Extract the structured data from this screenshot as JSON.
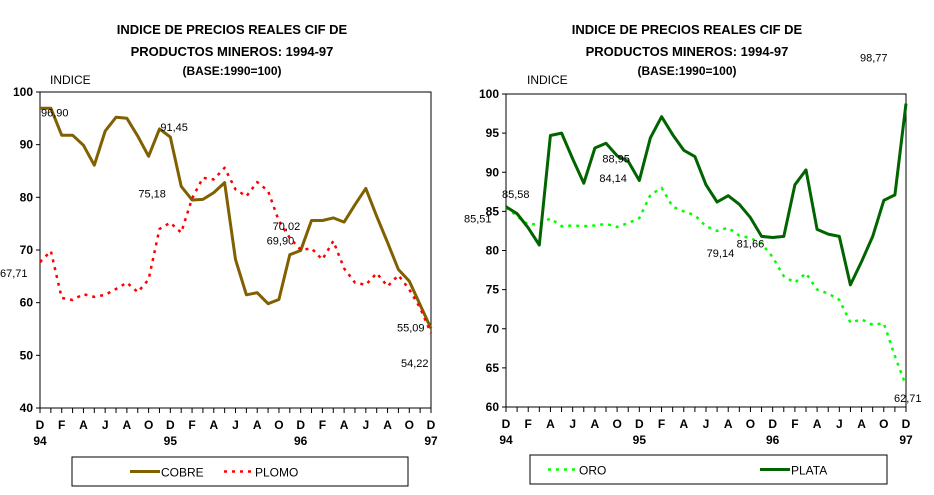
{
  "chart_data": [
    {
      "type": "line",
      "title": [
        "INDICE DE PRECIOS REALES CIF DE",
        "PRODUCTOS MINEROS: 1994-97"
      ],
      "subtitle": "(BASE:1990=100)",
      "ylabel": "INDICE",
      "ylim": [
        40,
        100
      ],
      "yticks": [
        40,
        50,
        60,
        70,
        80,
        90,
        100
      ],
      "x_month_labels": [
        "D",
        "F",
        "A",
        "J",
        "A",
        "O",
        "D",
        "F",
        "A",
        "J",
        "A",
        "O",
        "D",
        "F",
        "A",
        "J",
        "A",
        "O",
        "D"
      ],
      "x_year_labels": [
        "94",
        "95",
        "96",
        "97"
      ],
      "x_start": "1994-12",
      "x_end": "1997-12",
      "grid": false,
      "legend_position": "bottom",
      "series": [
        {
          "name": "COBRE",
          "color": "#806000",
          "style": "solid",
          "values": [
            96.9,
            96.9,
            91.8,
            91.8,
            89.9,
            86.1,
            92.6,
            95.2,
            95.0,
            91.6,
            87.8,
            93.0,
            91.45,
            82.1,
            79.5,
            79.6,
            80.9,
            82.8,
            68.2,
            61.5,
            61.9,
            59.8,
            60.6,
            69.1,
            69.9,
            75.6,
            75.6,
            76.1,
            75.3,
            78.6,
            81.7,
            76.4,
            71.4,
            66.3,
            64.1,
            59.6,
            55.09
          ],
          "annotations": [
            {
              "index": 0,
              "text": "96,90"
            },
            {
              "index": 12,
              "text": "91,45"
            },
            {
              "index": 24,
              "text": "69,90"
            },
            {
              "index": 36,
              "text": "55,09"
            }
          ]
        },
        {
          "name": "PLOMO",
          "color": "#ff0000",
          "style": "dotted",
          "values": [
            67.71,
            69.8,
            60.9,
            60.5,
            61.6,
            61.1,
            61.5,
            62.6,
            63.8,
            62.0,
            64.4,
            74.0,
            75.18,
            73.3,
            79.8,
            83.7,
            83.4,
            85.6,
            81.5,
            80.2,
            82.9,
            81.2,
            75.5,
            72.3,
            70.02,
            70.3,
            68.2,
            71.7,
            66.5,
            63.8,
            63.4,
            65.6,
            63.1,
            65.2,
            62.5,
            59.0,
            54.22
          ],
          "annotations": [
            {
              "index": 0,
              "text": "67,71"
            },
            {
              "index": 12,
              "text": "75,18"
            },
            {
              "index": 24,
              "text": "70,02"
            },
            {
              "index": 36,
              "text": "54,22"
            }
          ]
        }
      ]
    },
    {
      "type": "line",
      "title": [
        "INDICE DE PRECIOS REALES CIF DE",
        "PRODUCTOS MINEROS: 1994-97"
      ],
      "subtitle": "(BASE:1990=100)",
      "ylabel": "INDICE",
      "ylim": [
        60,
        100
      ],
      "yticks": [
        60,
        65,
        70,
        75,
        80,
        85,
        90,
        95,
        100
      ],
      "x_month_labels": [
        "D",
        "F",
        "A",
        "J",
        "A",
        "O",
        "D",
        "F",
        "A",
        "J",
        "A",
        "O",
        "D",
        "F",
        "A",
        "J",
        "A",
        "O",
        "D"
      ],
      "x_year_labels": [
        "94",
        "95",
        "96",
        "97"
      ],
      "x_start": "1994-12",
      "x_end": "1997-12",
      "grid": false,
      "legend_position": "bottom",
      "series": [
        {
          "name": "ORO",
          "color": "#00ff00",
          "style": "dotted",
          "values": [
            85.51,
            84.4,
            83.3,
            83.4,
            84.1,
            83.1,
            83.2,
            83.1,
            83.2,
            83.4,
            83.0,
            83.5,
            84.14,
            87.1,
            88.0,
            85.6,
            85.0,
            84.5,
            83.1,
            82.5,
            82.9,
            81.9,
            81.6,
            80.9,
            79.14,
            76.7,
            75.9,
            77.1,
            75.0,
            74.5,
            73.7,
            70.8,
            71.2,
            70.5,
            70.7,
            66.5,
            62.71
          ],
          "annotations": [
            {
              "index": 0,
              "text": "85,51"
            },
            {
              "index": 12,
              "text": "84,14"
            },
            {
              "index": 24,
              "text": "79,14"
            },
            {
              "index": 36,
              "text": "62,71"
            }
          ]
        },
        {
          "name": "PLATA",
          "color": "#006400",
          "style": "solid",
          "values": [
            85.58,
            84.7,
            82.9,
            80.7,
            94.7,
            95.0,
            91.7,
            88.6,
            93.1,
            93.7,
            92.1,
            91.4,
            88.95,
            94.4,
            97.1,
            94.8,
            92.8,
            92.0,
            88.4,
            86.2,
            87.0,
            85.9,
            84.2,
            81.8,
            81.66,
            81.8,
            88.4,
            90.3,
            82.7,
            82.1,
            81.8,
            75.6,
            78.6,
            81.8,
            86.4,
            87.1,
            98.77
          ],
          "annotations": [
            {
              "index": 0,
              "text": "85,58"
            },
            {
              "index": 12,
              "text": "88,95"
            },
            {
              "index": 24,
              "text": "81,66"
            },
            {
              "index": 36,
              "text": "98,77"
            }
          ]
        }
      ]
    }
  ]
}
